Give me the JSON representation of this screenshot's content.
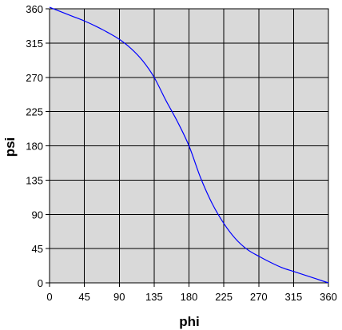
{
  "chart_data": {
    "type": "line",
    "title": "",
    "xlabel": "phi",
    "ylabel": "psi",
    "xlim": [
      0,
      360
    ],
    "ylim": [
      0,
      360
    ],
    "xticks": [
      0,
      45,
      90,
      135,
      180,
      225,
      270,
      315,
      360
    ],
    "yticks": [
      0,
      45,
      90,
      135,
      180,
      225,
      270,
      315,
      360
    ],
    "grid": true,
    "legend": "none",
    "colors": {
      "plot_background": "#d9d9d9",
      "grid": "#000000",
      "line": "#0000ff"
    },
    "series": [
      {
        "x": [
          0,
          15,
          30,
          45,
          60,
          75,
          90,
          105,
          120,
          135,
          150,
          165,
          180,
          195,
          210,
          225,
          240,
          255,
          270,
          285,
          300,
          315,
          330,
          345,
          360
        ],
        "y": [
          362,
          356,
          350,
          344,
          337,
          329,
          320,
          308,
          292,
          270,
          240,
          212,
          180,
          138,
          104,
          78,
          58,
          44,
          35,
          27,
          20,
          15,
          10,
          5,
          0
        ]
      }
    ]
  }
}
